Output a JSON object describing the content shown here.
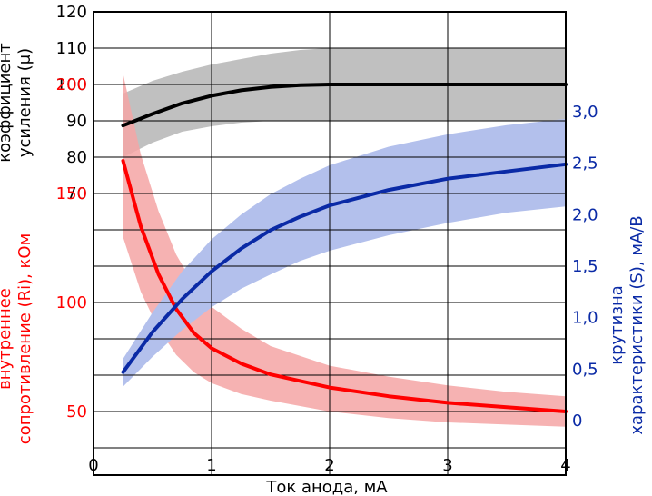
{
  "chart_data": {
    "type": "line",
    "xlabel": "Ток анода, мА",
    "x_ticks": [
      "0",
      "1",
      "2",
      "3",
      "4"
    ],
    "xlim": [
      0,
      4
    ],
    "grid": true,
    "colors": {
      "mu": "#000000",
      "mu_band": "#c0c0c0",
      "ri": "#ff0000",
      "ri_band": "#f4a4a4",
      "s": "#0a2aa6",
      "s_band": "#b3c0ec"
    },
    "axes": {
      "mu": {
        "label_lines": [
          "коэффициент",
          "усиления (μ)"
        ],
        "ticks": [
          "70",
          "80",
          "90",
          "100",
          "110",
          "120"
        ],
        "ylim": [
          70,
          120
        ]
      },
      "ri": {
        "label_lines": [
          "внутреннее",
          "сопротивление (Ri), кОм"
        ],
        "ticks": [
          "50",
          "100",
          "150",
          "200"
        ],
        "ylim": [
          0,
          225
        ]
      },
      "s": {
        "label_lines": [
          "крутизна",
          "характеристики (S), мА/В"
        ],
        "ticks": [
          "0",
          "0,5",
          "1,0",
          "1,5",
          "2,0",
          "2,5",
          "3,0"
        ],
        "ylim": [
          0,
          3.0
        ]
      }
    },
    "series": [
      {
        "key": "mu",
        "axis": "mu",
        "x": [
          0.25,
          0.5,
          0.75,
          1.0,
          1.25,
          1.5,
          1.75,
          2.0,
          2.5,
          3.0,
          3.5,
          4.0
        ],
        "values": [
          88.7,
          91.9,
          94.8,
          96.9,
          98.4,
          99.3,
          99.8,
          100,
          100,
          100,
          100,
          100
        ],
        "lower": [
          80,
          84,
          87,
          88.5,
          89.5,
          90,
          90,
          90,
          90,
          90,
          90,
          90
        ],
        "upper": [
          97.5,
          101,
          103.5,
          105.5,
          107,
          108.5,
          109.5,
          110,
          110,
          110,
          110,
          110
        ]
      },
      {
        "key": "ri",
        "axis": "ri",
        "x": [
          0.25,
          0.4,
          0.55,
          0.7,
          0.85,
          1.0,
          1.25,
          1.5,
          2.0,
          2.5,
          3.0,
          3.5,
          4.0
        ],
        "values": [
          165,
          135,
          113,
          97,
          86,
          79,
          72,
          67,
          61,
          57,
          54,
          52,
          50
        ],
        "lower": [
          130,
          105,
          88,
          76,
          68,
          63,
          58,
          55,
          50,
          47,
          45,
          44,
          43
        ],
        "upper": [
          205,
          168,
          142,
          122,
          108,
          98,
          88,
          80,
          71,
          66,
          62,
          59,
          57
        ]
      },
      {
        "key": "s",
        "axis": "s",
        "x": [
          0.25,
          0.5,
          0.75,
          1.0,
          1.25,
          1.5,
          1.75,
          2.0,
          2.5,
          3.0,
          3.5,
          4.0
        ],
        "values": [
          0.47,
          0.86,
          1.18,
          1.45,
          1.67,
          1.85,
          1.98,
          2.09,
          2.24,
          2.35,
          2.42,
          2.49
        ],
        "lower": [
          0.33,
          0.62,
          0.88,
          1.1,
          1.28,
          1.42,
          1.55,
          1.65,
          1.8,
          1.92,
          2.02,
          2.08
        ],
        "upper": [
          0.6,
          1.05,
          1.45,
          1.76,
          2.0,
          2.2,
          2.35,
          2.48,
          2.66,
          2.78,
          2.87,
          2.93
        ]
      }
    ]
  }
}
